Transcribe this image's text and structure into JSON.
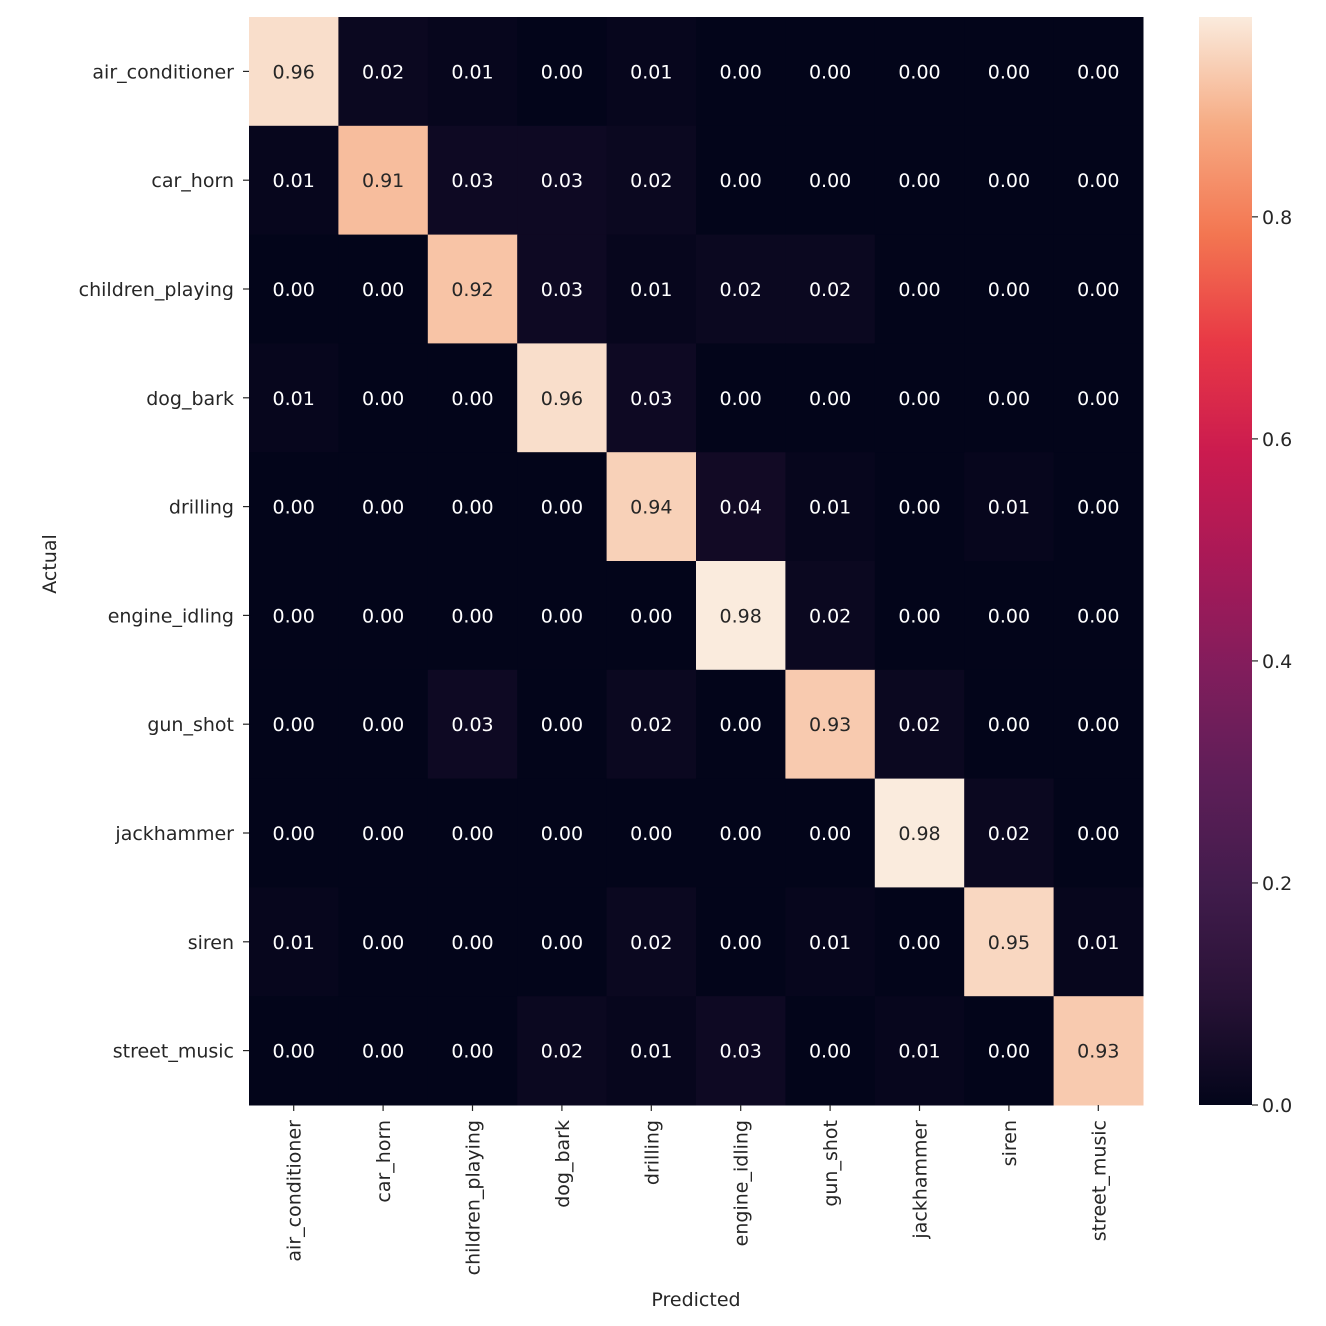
{
  "chart_data": {
    "type": "heatmap",
    "title": "",
    "xlabel": "Predicted",
    "ylabel": "Actual",
    "x_categories": [
      "air_conditioner",
      "car_horn",
      "children_playing",
      "dog_bark",
      "drilling",
      "engine_idling",
      "gun_shot",
      "jackhammer",
      "siren",
      "street_music"
    ],
    "y_categories": [
      "air_conditioner",
      "car_horn",
      "children_playing",
      "dog_bark",
      "drilling",
      "engine_idling",
      "gun_shot",
      "jackhammer",
      "siren",
      "street_music"
    ],
    "values": [
      [
        0.96,
        0.02,
        0.01,
        0.0,
        0.01,
        0.0,
        0.0,
        0.0,
        0.0,
        0.0
      ],
      [
        0.01,
        0.91,
        0.03,
        0.03,
        0.02,
        0.0,
        0.0,
        0.0,
        0.0,
        0.0
      ],
      [
        0.0,
        0.0,
        0.92,
        0.03,
        0.01,
        0.02,
        0.02,
        0.0,
        0.0,
        0.0
      ],
      [
        0.01,
        0.0,
        0.0,
        0.96,
        0.03,
        0.0,
        0.0,
        0.0,
        0.0,
        0.0
      ],
      [
        0.0,
        0.0,
        0.0,
        0.0,
        0.94,
        0.04,
        0.01,
        0.0,
        0.01,
        0.0
      ],
      [
        0.0,
        0.0,
        0.0,
        0.0,
        0.0,
        0.98,
        0.02,
        0.0,
        0.0,
        0.0
      ],
      [
        0.0,
        0.0,
        0.03,
        0.0,
        0.02,
        0.0,
        0.93,
        0.02,
        0.0,
        0.0
      ],
      [
        0.0,
        0.0,
        0.0,
        0.0,
        0.0,
        0.0,
        0.0,
        0.98,
        0.02,
        0.0
      ],
      [
        0.01,
        0.0,
        0.0,
        0.0,
        0.02,
        0.0,
        0.01,
        0.0,
        0.95,
        0.01
      ],
      [
        0.0,
        0.0,
        0.0,
        0.02,
        0.01,
        0.03,
        0.0,
        0.01,
        0.0,
        0.93
      ]
    ],
    "value_format": "0.00",
    "colormap": "rocket",
    "colorbar": {
      "range": [
        0.0,
        0.98
      ],
      "ticks": [
        0.0,
        0.2,
        0.4,
        0.6,
        0.8
      ],
      "tick_labels": [
        "0.0",
        "0.2",
        "0.4",
        "0.6",
        "0.8"
      ]
    },
    "annotation_colors": {
      "light": "#ffffff",
      "dark": "#262626"
    }
  }
}
